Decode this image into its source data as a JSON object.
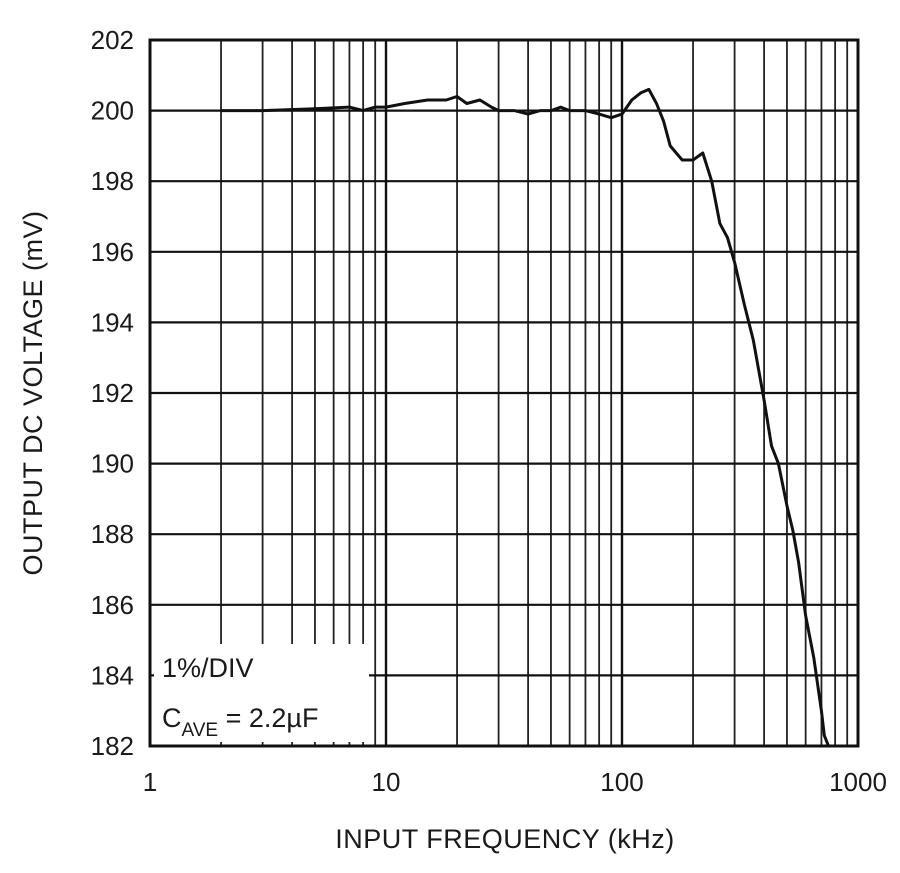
{
  "chart_data": {
    "type": "line",
    "xlabel": "INPUT FREQUENCY (kHz)",
    "ylabel": "OUTPUT DC VOLTAGE (mV)",
    "xscale": "log",
    "xlim": [
      1,
      1000
    ],
    "ylim": [
      182,
      202
    ],
    "grid": true,
    "x_ticks": [
      1,
      10,
      100,
      1000
    ],
    "x_tick_labels": [
      "1",
      "10",
      "100",
      "1000"
    ],
    "y_ticks": [
      182,
      184,
      186,
      188,
      190,
      192,
      194,
      196,
      198,
      200,
      202
    ],
    "y_tick_labels": [
      "182",
      "184",
      "186",
      "188",
      "190",
      "192",
      "194",
      "196",
      "198",
      "200",
      "202"
    ],
    "annotation": {
      "line1": "1%/DIV",
      "line2_prefix": "C",
      "line2_sub": "AVE",
      "line2_suffix": " = 2.2µF"
    },
    "color": "#111111",
    "series": [
      {
        "x": [
          2,
          3,
          5,
          7,
          8,
          9,
          10,
          12,
          15,
          18,
          20,
          22,
          25,
          28,
          30,
          35,
          40,
          45,
          50,
          55,
          60,
          70,
          80,
          90,
          100,
          110,
          120,
          130,
          140,
          150,
          160,
          180,
          200,
          220,
          240,
          260,
          280,
          300,
          330,
          360,
          400,
          430,
          460,
          500,
          530,
          560,
          600,
          650,
          700,
          720,
          750
        ],
        "y": [
          200.0,
          200.0,
          200.05,
          200.1,
          200.0,
          200.1,
          200.1,
          200.2,
          200.3,
          200.3,
          200.4,
          200.2,
          200.3,
          200.1,
          200.0,
          200.0,
          199.9,
          200.0,
          200.0,
          200.1,
          200.0,
          200.0,
          199.9,
          199.8,
          199.9,
          200.3,
          200.5,
          200.6,
          200.2,
          199.7,
          199.0,
          198.6,
          198.6,
          198.8,
          198.0,
          196.8,
          196.4,
          195.7,
          194.5,
          193.5,
          191.8,
          190.5,
          190.0,
          188.8,
          188.1,
          187.2,
          185.7,
          184.5,
          183.0,
          182.3,
          182.0
        ]
      }
    ]
  }
}
